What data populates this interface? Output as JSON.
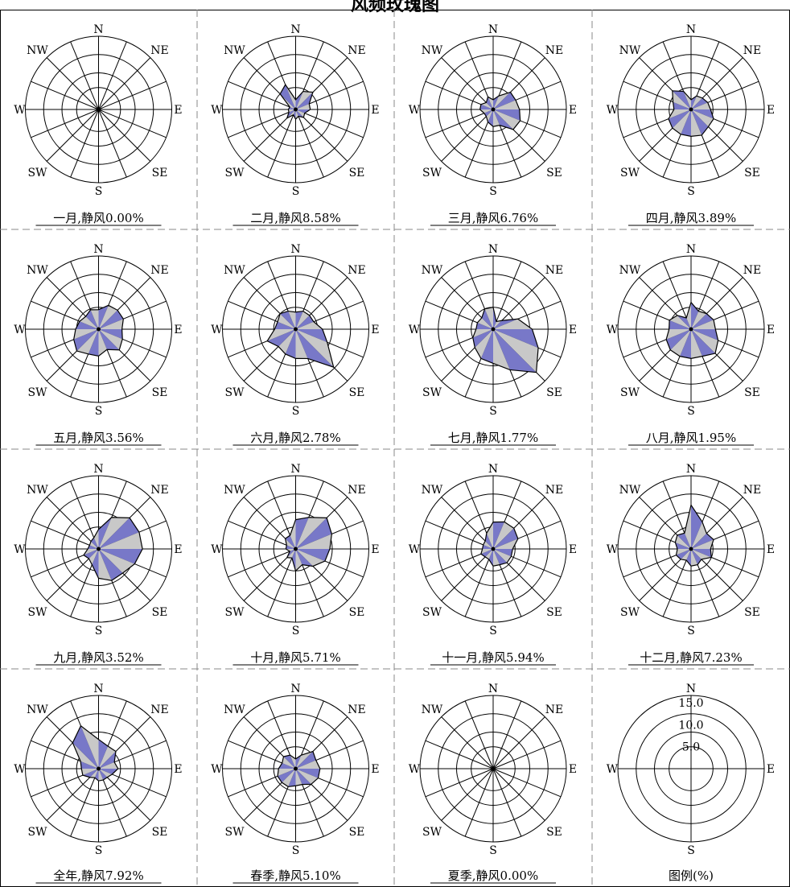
{
  "title": "风频玫瑰图",
  "directions": [
    "N",
    "NNE",
    "NE",
    "ENE",
    "E",
    "ESE",
    "SE",
    "SSE",
    "S",
    "SSW",
    "SW",
    "WSW",
    "W",
    "WNW",
    "NW",
    "NNW"
  ],
  "direction_labels": {
    "N": "N",
    "NE": "NE",
    "E": "E",
    "SE": "SE",
    "S": "S",
    "SW": "SW",
    "W": "W",
    "NW": "NW"
  },
  "units": "%",
  "ring_max": 15,
  "colors": {
    "fill_a": "#7878c8",
    "fill_b": "#c8c8c8",
    "line": "#000000",
    "grid": "#000000",
    "divider": "#888888"
  },
  "chart_data": [
    {
      "type": "radar",
      "caption": "一月,静风0.00%",
      "values": [
        0,
        0,
        0,
        0,
        0,
        0,
        0,
        0,
        0,
        0,
        0,
        0,
        0,
        0,
        0,
        0
      ]
    },
    {
      "type": "radar",
      "caption": "二月,静风8.58%",
      "values": [
        2,
        4,
        5,
        3,
        3,
        2,
        2.3,
        1.5,
        2,
        1.2,
        2.5,
        1.5,
        1.5,
        1.3,
        4.5,
        5.5
      ]
    },
    {
      "type": "radar",
      "caption": "三月,静风6.76%",
      "values": [
        2,
        3,
        5,
        5,
        5.4,
        6,
        5.8,
        3.5,
        3.5,
        2.8,
        2,
        2,
        2.7,
        2.7,
        2,
        2.8
      ]
    },
    {
      "type": "radar",
      "caption": "四月,静风3.89%",
      "values": [
        2,
        3,
        3.3,
        3.7,
        4,
        5,
        5,
        5.7,
        5.5,
        5.5,
        5.4,
        5,
        3.5,
        4,
        5.4,
        4
      ]
    },
    {
      "type": "radar",
      "caption": "五月,静风3.56%",
      "values": [
        4,
        5.3,
        5.5,
        5.5,
        4.8,
        5.3,
        6,
        4.5,
        5.5,
        5.5,
        6.3,
        5.5,
        4.7,
        4.2,
        3.7,
        4.3
      ]
    },
    {
      "type": "radar",
      "caption": "六月,静风2.78%",
      "values": [
        3.5,
        4,
        4,
        4,
        5.5,
        7,
        11,
        6.5,
        6,
        5.5,
        5,
        6.3,
        4.3,
        4,
        4.5,
        4
      ]
    },
    {
      "type": "radar",
      "caption": "七月,静风1.77%",
      "values": [
        4.5,
        1.7,
        2.5,
        5.5,
        8,
        10,
        12.5,
        9,
        7,
        6.5,
        5.3,
        4.5,
        3.5,
        3.5,
        3.3,
        4.5
      ]
    },
    {
      "type": "radar",
      "caption": "八月,静风1.95%",
      "values": [
        5.5,
        4,
        4.5,
        5,
        5,
        6,
        7,
        6,
        6,
        6,
        6,
        5.5,
        4.5,
        4.8,
        4,
        2.5
      ]
    },
    {
      "type": "radar",
      "caption": "九月,静风3.52%",
      "values": [
        4,
        7,
        9,
        9,
        9,
        8,
        7,
        7,
        6,
        3.5,
        2.8,
        3.3,
        2.2,
        2,
        2.2,
        2.5
      ]
    },
    {
      "type": "radar",
      "caption": "十月,静风5.71%",
      "values": [
        6,
        7,
        9,
        8,
        7,
        6.5,
        5,
        3.5,
        4.5,
        2,
        2.5,
        1.3,
        2,
        2,
        3,
        3
      ]
    },
    {
      "type": "radar",
      "caption": "十一月,静风5.94%",
      "values": [
        5.5,
        6,
        6,
        5.5,
        4,
        4,
        4,
        3.5,
        3.5,
        2.3,
        2.3,
        2.7,
        2.2,
        2.2,
        2.3,
        3.5
      ]
    },
    {
      "type": "radar",
      "caption": "十二月,静风7.23%",
      "values": [
        9,
        6,
        4.5,
        5,
        4,
        4.5,
        3,
        3.5,
        3.5,
        2.5,
        3,
        3.3,
        2.8,
        3.5,
        4,
        3.5
      ]
    },
    {
      "type": "radar",
      "caption": "全年,静风7.92%",
      "values": [
        6,
        5,
        5,
        3.5,
        4,
        3,
        2.5,
        2.5,
        2.5,
        2,
        2.5,
        3.5,
        3.5,
        4,
        7.5,
        9.5
      ]
    },
    {
      "type": "radar",
      "caption": "春季,静风5.10%",
      "values": [
        2,
        3,
        5,
        4.5,
        5,
        5,
        4.5,
        3.5,
        3.5,
        4,
        4,
        4,
        3.5,
        3,
        3.5,
        3
      ]
    },
    {
      "type": "radar",
      "caption": "夏季,静风0.00%",
      "values": [
        0,
        0,
        0,
        0,
        0,
        0,
        0,
        0,
        0,
        0,
        0,
        0,
        0,
        0,
        0,
        0
      ]
    }
  ],
  "legend": {
    "caption": "图例(%)",
    "ring_labels": [
      "15.0",
      "10.0",
      "5.0"
    ],
    "direction_labels": {
      "N": "N",
      "E": "E",
      "S": "S",
      "W": "W"
    }
  }
}
